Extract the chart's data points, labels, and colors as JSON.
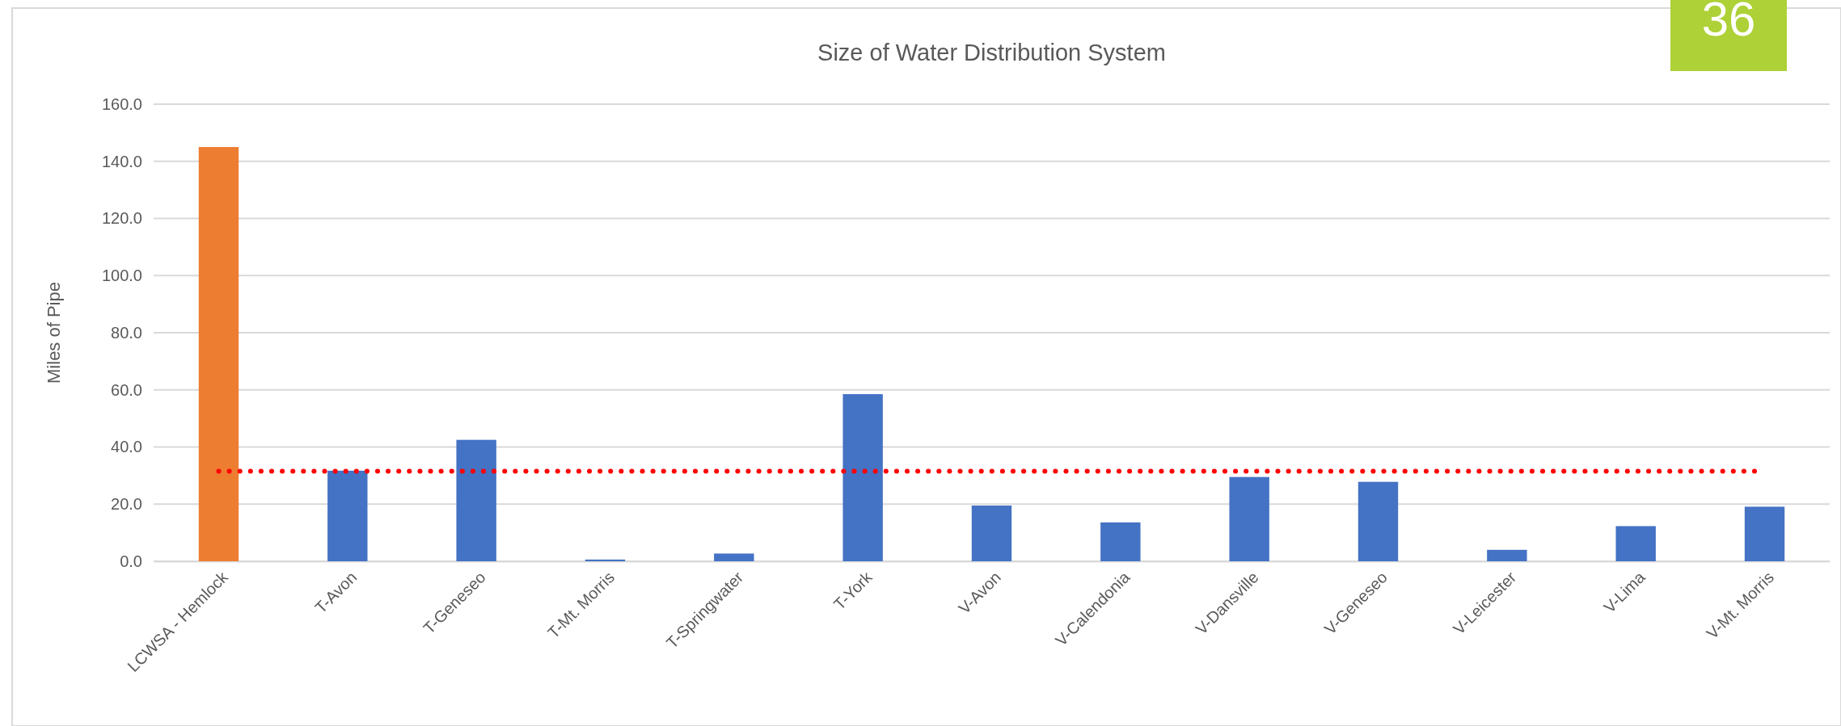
{
  "chart_data": {
    "type": "bar",
    "title": "Size of Water Distribution System",
    "ylabel": "Miles of Pipe",
    "categories": [
      "LCWSA - Hemlock",
      "T-Avon",
      "T-Geneseo",
      "T-Mt. Morris",
      "T-Springwater",
      "T-York",
      "V-Avon",
      "V-Calendonia",
      "V-Dansville",
      "V-Geneseo",
      "V-Leicester",
      "V-Lima",
      "V-Mt. Morris"
    ],
    "values": [
      145,
      31.7,
      42.5,
      0.6,
      2.7,
      58.5,
      19.5,
      13.6,
      29.5,
      27.8,
      4.0,
      12.3,
      19.1
    ],
    "colors": [
      "#ed7d31",
      "#4472c4",
      "#4472c4",
      "#4472c4",
      "#4472c4",
      "#4472c4",
      "#4472c4",
      "#4472c4",
      "#4472c4",
      "#4472c4",
      "#4472c4",
      "#4472c4",
      "#4472c4"
    ],
    "ylim": [
      0,
      160
    ],
    "yticks": [
      {
        "value": 0,
        "label": "0.0"
      },
      {
        "value": 20,
        "label": "20.0"
      },
      {
        "value": 40,
        "label": "40.0"
      },
      {
        "value": 60,
        "label": "60.0"
      },
      {
        "value": 80,
        "label": "80.0"
      },
      {
        "value": 100,
        "label": "100.0"
      },
      {
        "value": 120,
        "label": "120.0"
      },
      {
        "value": 140,
        "label": "140.0"
      },
      {
        "value": 160,
        "label": "160.0"
      }
    ],
    "grid": "y",
    "ref_lines": [
      {
        "axis": "y",
        "value": 31.5,
        "color": "#ff0000",
        "line_style": "dotted"
      }
    ],
    "annotations": [
      "36"
    ]
  }
}
